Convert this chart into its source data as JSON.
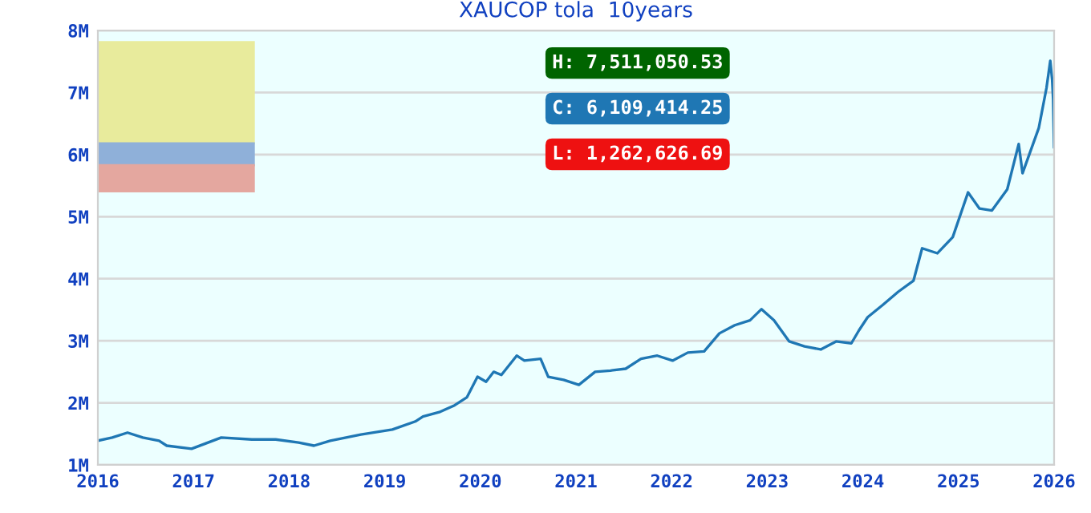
{
  "chart_data": {
    "type": "line",
    "title": "XAUCOP tola  10years",
    "x": [
      2016.0,
      2016.15,
      2016.31,
      2016.47,
      2016.64,
      2016.72,
      2016.98,
      2017.29,
      2017.61,
      2017.86,
      2018.1,
      2018.26,
      2018.43,
      2018.75,
      2019.08,
      2019.32,
      2019.4,
      2019.57,
      2019.73,
      2019.86,
      2019.97,
      2020.06,
      2020.14,
      2020.22,
      2020.38,
      2020.46,
      2020.63,
      2020.71,
      2020.87,
      2021.03,
      2021.2,
      2021.36,
      2021.52,
      2021.68,
      2021.85,
      2022.01,
      2022.17,
      2022.34,
      2022.5,
      2022.66,
      2022.82,
      2022.94,
      2023.07,
      2023.23,
      2023.39,
      2023.56,
      2023.72,
      2023.88,
      2023.96,
      2024.05,
      2024.21,
      2024.37,
      2024.53,
      2024.62,
      2024.78,
      2024.94,
      2025.1,
      2025.22,
      2025.35,
      2025.51,
      2025.63,
      2025.67,
      2025.84,
      2025.92,
      2025.96,
      2025.98,
      2025.99,
      2026.0
    ],
    "series": [
      {
        "color": "#1f77b4",
        "values": [
          1.39,
          1.44,
          1.52,
          1.44,
          1.39,
          1.31,
          1.26,
          1.44,
          1.41,
          1.41,
          1.36,
          1.31,
          1.39,
          1.49,
          1.57,
          1.7,
          1.78,
          1.85,
          1.96,
          2.09,
          2.42,
          2.34,
          2.5,
          2.45,
          2.76,
          2.68,
          2.71,
          2.42,
          2.37,
          2.29,
          2.5,
          2.52,
          2.55,
          2.71,
          2.76,
          2.68,
          2.81,
          2.83,
          3.12,
          3.25,
          3.33,
          3.51,
          3.33,
          2.99,
          2.91,
          2.86,
          2.99,
          2.96,
          3.17,
          3.38,
          3.58,
          3.79,
          3.97,
          4.49,
          4.41,
          4.67,
          5.39,
          5.13,
          5.1,
          5.44,
          6.17,
          5.7,
          6.43,
          7.07,
          7.51,
          7.2,
          6.89,
          6.11
        ]
      }
    ],
    "xlim": [
      2016,
      2026
    ],
    "ylim": [
      1,
      8
    ],
    "xticks": [
      2016,
      2017,
      2018,
      2019,
      2020,
      2021,
      2022,
      2023,
      2024,
      2025,
      2026
    ],
    "yticks": [
      {
        "value": 1,
        "label": "1M"
      },
      {
        "value": 2,
        "label": "2M"
      },
      {
        "value": 3,
        "label": "3M"
      },
      {
        "value": 4,
        "label": "4M"
      },
      {
        "value": 5,
        "label": "5M"
      },
      {
        "value": 6,
        "label": "6M"
      },
      {
        "value": 7,
        "label": "7M"
      },
      {
        "value": 8,
        "label": "8M"
      }
    ],
    "grid": "y",
    "marker": "none",
    "line_style": "solid",
    "annotations": [
      "H: 7,511,050.53",
      "C: 6,109,414.25",
      "L: 1,262,626.69"
    ]
  }
}
